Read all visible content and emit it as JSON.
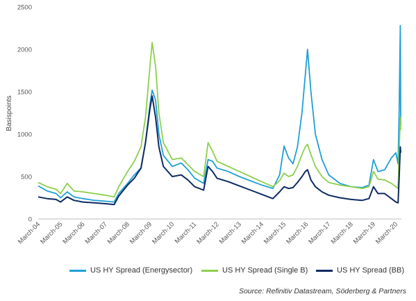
{
  "chart_data": {
    "type": "line",
    "ylabel": "Basispoints",
    "ylim": [
      0,
      2500
    ],
    "yticks": [
      "0",
      "500",
      "1000",
      "1500",
      "2000",
      "2500"
    ],
    "xticks": [
      "March-04",
      "March-05",
      "March-06",
      "March-07",
      "March-08",
      "March-09",
      "March-10",
      "March-11",
      "March-12",
      "March-13",
      "March-14",
      "March-15",
      "March-16",
      "March-17",
      "March-18",
      "March-19",
      "March-20"
    ],
    "grid": false,
    "legend_position": "bottom",
    "source": "Source: Refinitiv Datastream, Söderberg & Partners",
    "series": [
      {
        "name": "US HY Spread (Energysector)",
        "color": "#1f9fd6",
        "values": [
          [
            2004.0,
            390
          ],
          [
            2004.4,
            330
          ],
          [
            2004.8,
            300
          ],
          [
            2005.0,
            250
          ],
          [
            2005.3,
            320
          ],
          [
            2005.6,
            260
          ],
          [
            2006.0,
            240
          ],
          [
            2006.5,
            220
          ],
          [
            2007.0,
            210
          ],
          [
            2007.4,
            200
          ],
          [
            2007.6,
            300
          ],
          [
            2008.0,
            420
          ],
          [
            2008.3,
            520
          ],
          [
            2008.6,
            600
          ],
          [
            2008.8,
            900
          ],
          [
            2009.0,
            1350
          ],
          [
            2009.1,
            1520
          ],
          [
            2009.25,
            1400
          ],
          [
            2009.4,
            1000
          ],
          [
            2009.6,
            750
          ],
          [
            2010.0,
            620
          ],
          [
            2010.4,
            660
          ],
          [
            2010.7,
            580
          ],
          [
            2011.0,
            480
          ],
          [
            2011.4,
            420
          ],
          [
            2011.6,
            700
          ],
          [
            2011.8,
            680
          ],
          [
            2012.0,
            600
          ],
          [
            2012.5,
            560
          ],
          [
            2013.0,
            500
          ],
          [
            2013.5,
            450
          ],
          [
            2014.0,
            400
          ],
          [
            2014.5,
            360
          ],
          [
            2014.8,
            520
          ],
          [
            2015.0,
            860
          ],
          [
            2015.2,
            720
          ],
          [
            2015.4,
            650
          ],
          [
            2015.6,
            850
          ],
          [
            2015.8,
            1250
          ],
          [
            2015.95,
            1700
          ],
          [
            2016.05,
            2000
          ],
          [
            2016.2,
            1500
          ],
          [
            2016.4,
            1000
          ],
          [
            2016.7,
            700
          ],
          [
            2017.0,
            520
          ],
          [
            2017.5,
            420
          ],
          [
            2018.0,
            380
          ],
          [
            2018.5,
            370
          ],
          [
            2018.8,
            400
          ],
          [
            2019.0,
            700
          ],
          [
            2019.2,
            560
          ],
          [
            2019.5,
            580
          ],
          [
            2019.8,
            720
          ],
          [
            2020.0,
            780
          ],
          [
            2020.1,
            650
          ],
          [
            2020.15,
            1300
          ],
          [
            2020.2,
            2280
          ],
          [
            2020.22,
            1100
          ]
        ]
      },
      {
        "name": "US HY Spread (Single B)",
        "color": "#8ccf4d",
        "values": [
          [
            2004.0,
            430
          ],
          [
            2004.4,
            380
          ],
          [
            2004.8,
            350
          ],
          [
            2005.0,
            300
          ],
          [
            2005.3,
            420
          ],
          [
            2005.6,
            330
          ],
          [
            2006.0,
            320
          ],
          [
            2006.5,
            300
          ],
          [
            2007.0,
            280
          ],
          [
            2007.4,
            260
          ],
          [
            2007.6,
            380
          ],
          [
            2008.0,
            560
          ],
          [
            2008.3,
            680
          ],
          [
            2008.6,
            850
          ],
          [
            2008.8,
            1200
          ],
          [
            2009.0,
            1800
          ],
          [
            2009.1,
            2080
          ],
          [
            2009.25,
            1800
          ],
          [
            2009.4,
            1250
          ],
          [
            2009.6,
            900
          ],
          [
            2010.0,
            700
          ],
          [
            2010.4,
            720
          ],
          [
            2010.7,
            640
          ],
          [
            2011.0,
            560
          ],
          [
            2011.4,
            500
          ],
          [
            2011.6,
            900
          ],
          [
            2011.8,
            800
          ],
          [
            2012.0,
            680
          ],
          [
            2012.5,
            620
          ],
          [
            2013.0,
            560
          ],
          [
            2013.5,
            500
          ],
          [
            2014.0,
            440
          ],
          [
            2014.5,
            380
          ],
          [
            2014.8,
            450
          ],
          [
            2015.0,
            540
          ],
          [
            2015.2,
            500
          ],
          [
            2015.4,
            520
          ],
          [
            2015.6,
            620
          ],
          [
            2015.8,
            760
          ],
          [
            2015.95,
            850
          ],
          [
            2016.05,
            880
          ],
          [
            2016.2,
            760
          ],
          [
            2016.4,
            620
          ],
          [
            2016.7,
            500
          ],
          [
            2017.0,
            430
          ],
          [
            2017.5,
            400
          ],
          [
            2018.0,
            380
          ],
          [
            2018.5,
            360
          ],
          [
            2018.8,
            380
          ],
          [
            2019.0,
            560
          ],
          [
            2019.2,
            470
          ],
          [
            2019.5,
            460
          ],
          [
            2019.8,
            420
          ],
          [
            2020.0,
            380
          ],
          [
            2020.1,
            360
          ],
          [
            2020.15,
            800
          ],
          [
            2020.2,
            1200
          ],
          [
            2020.22,
            1050
          ]
        ]
      },
      {
        "name": "US HY Spread (BB)",
        "color": "#0d2a62",
        "values": [
          [
            2004.0,
            260
          ],
          [
            2004.4,
            240
          ],
          [
            2004.8,
            230
          ],
          [
            2005.0,
            200
          ],
          [
            2005.3,
            260
          ],
          [
            2005.6,
            220
          ],
          [
            2006.0,
            200
          ],
          [
            2006.5,
            190
          ],
          [
            2007.0,
            180
          ],
          [
            2007.4,
            170
          ],
          [
            2007.6,
            270
          ],
          [
            2008.0,
            400
          ],
          [
            2008.3,
            480
          ],
          [
            2008.6,
            600
          ],
          [
            2008.8,
            900
          ],
          [
            2009.0,
            1300
          ],
          [
            2009.1,
            1450
          ],
          [
            2009.25,
            1200
          ],
          [
            2009.4,
            850
          ],
          [
            2009.6,
            620
          ],
          [
            2010.0,
            500
          ],
          [
            2010.4,
            520
          ],
          [
            2010.7,
            460
          ],
          [
            2011.0,
            380
          ],
          [
            2011.4,
            340
          ],
          [
            2011.6,
            620
          ],
          [
            2011.8,
            560
          ],
          [
            2012.0,
            480
          ],
          [
            2012.5,
            440
          ],
          [
            2013.0,
            390
          ],
          [
            2013.5,
            340
          ],
          [
            2014.0,
            290
          ],
          [
            2014.5,
            240
          ],
          [
            2014.8,
            320
          ],
          [
            2015.0,
            380
          ],
          [
            2015.2,
            360
          ],
          [
            2015.4,
            370
          ],
          [
            2015.6,
            430
          ],
          [
            2015.8,
            500
          ],
          [
            2015.95,
            560
          ],
          [
            2016.05,
            580
          ],
          [
            2016.2,
            460
          ],
          [
            2016.4,
            380
          ],
          [
            2016.7,
            320
          ],
          [
            2017.0,
            280
          ],
          [
            2017.5,
            250
          ],
          [
            2018.0,
            230
          ],
          [
            2018.5,
            220
          ],
          [
            2018.8,
            240
          ],
          [
            2019.0,
            380
          ],
          [
            2019.2,
            300
          ],
          [
            2019.5,
            300
          ],
          [
            2019.8,
            240
          ],
          [
            2020.0,
            200
          ],
          [
            2020.1,
            190
          ],
          [
            2020.15,
            500
          ],
          [
            2020.2,
            850
          ],
          [
            2020.22,
            780
          ]
        ]
      }
    ]
  }
}
